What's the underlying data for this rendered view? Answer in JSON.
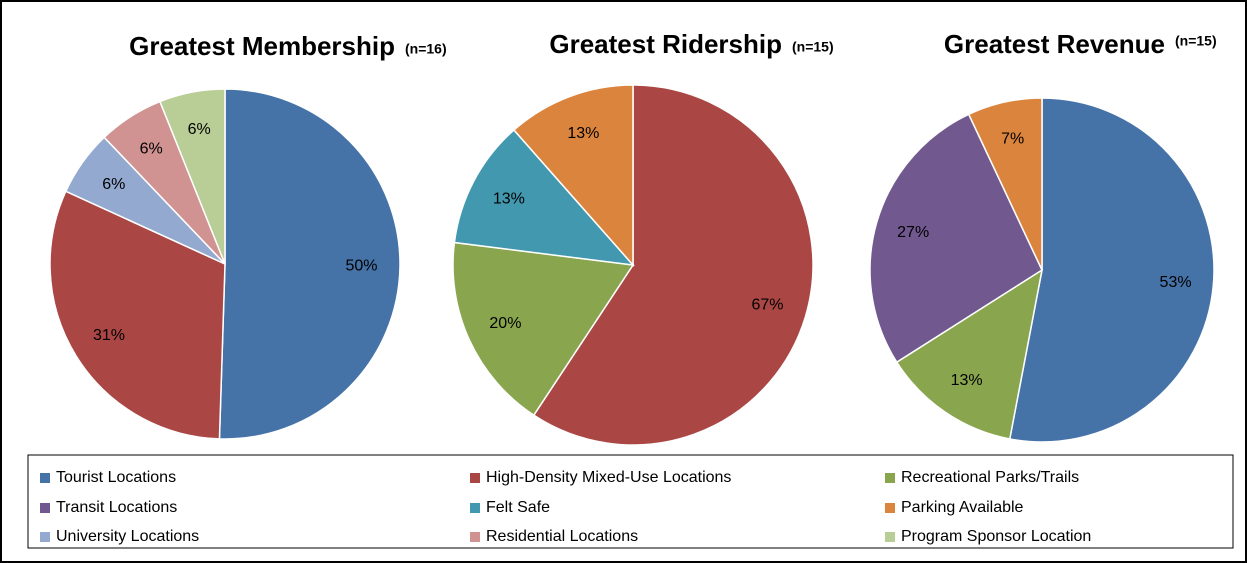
{
  "chart_data": [
    {
      "type": "pie",
      "title": "Greatest Membership",
      "subtitle": "(n=16)",
      "categories": [
        "Tourist Locations",
        "High-Density Mixed-Use Locations",
        "University Locations",
        "Residential Locations",
        "Program Sponsor Location"
      ],
      "values": [
        50,
        31,
        6,
        6,
        6
      ],
      "value_labels": [
        "50%",
        "31%",
        "6%",
        "6%",
        "6%"
      ]
    },
    {
      "type": "pie",
      "title": "Greatest Ridership",
      "subtitle": "(n=15)",
      "categories": [
        "High-Density Mixed-Use Locations",
        "Recreational Parks/Trails",
        "Felt Safe",
        "Parking Available"
      ],
      "values": [
        67,
        20,
        13,
        13
      ],
      "value_labels": [
        "67%",
        "20%",
        "13%",
        "13%"
      ]
    },
    {
      "type": "pie",
      "title": "Greatest Revenue",
      "subtitle": "(n=15)",
      "categories": [
        "Tourist Locations",
        "Recreational Parks/Trails",
        "Transit Locations",
        "Parking Available"
      ],
      "values": [
        53,
        13,
        27,
        7
      ],
      "value_labels": [
        "53%",
        "13%",
        "27%",
        "7%"
      ]
    }
  ],
  "legend": [
    {
      "name": "Tourist Locations",
      "color": "#4572a7"
    },
    {
      "name": "High-Density Mixed-Use Locations",
      "color": "#aa4643"
    },
    {
      "name": "Recreational Parks/Trails",
      "color": "#89a54e"
    },
    {
      "name": "Transit Locations",
      "color": "#71588f"
    },
    {
      "name": "Felt Safe",
      "color": "#4198af"
    },
    {
      "name": "Parking Available",
      "color": "#db843d"
    },
    {
      "name": "University Locations",
      "color": "#93a9cf"
    },
    {
      "name": "Residential Locations",
      "color": "#d19392"
    },
    {
      "name": "Program Sponsor Location",
      "color": "#b9cd96"
    }
  ]
}
